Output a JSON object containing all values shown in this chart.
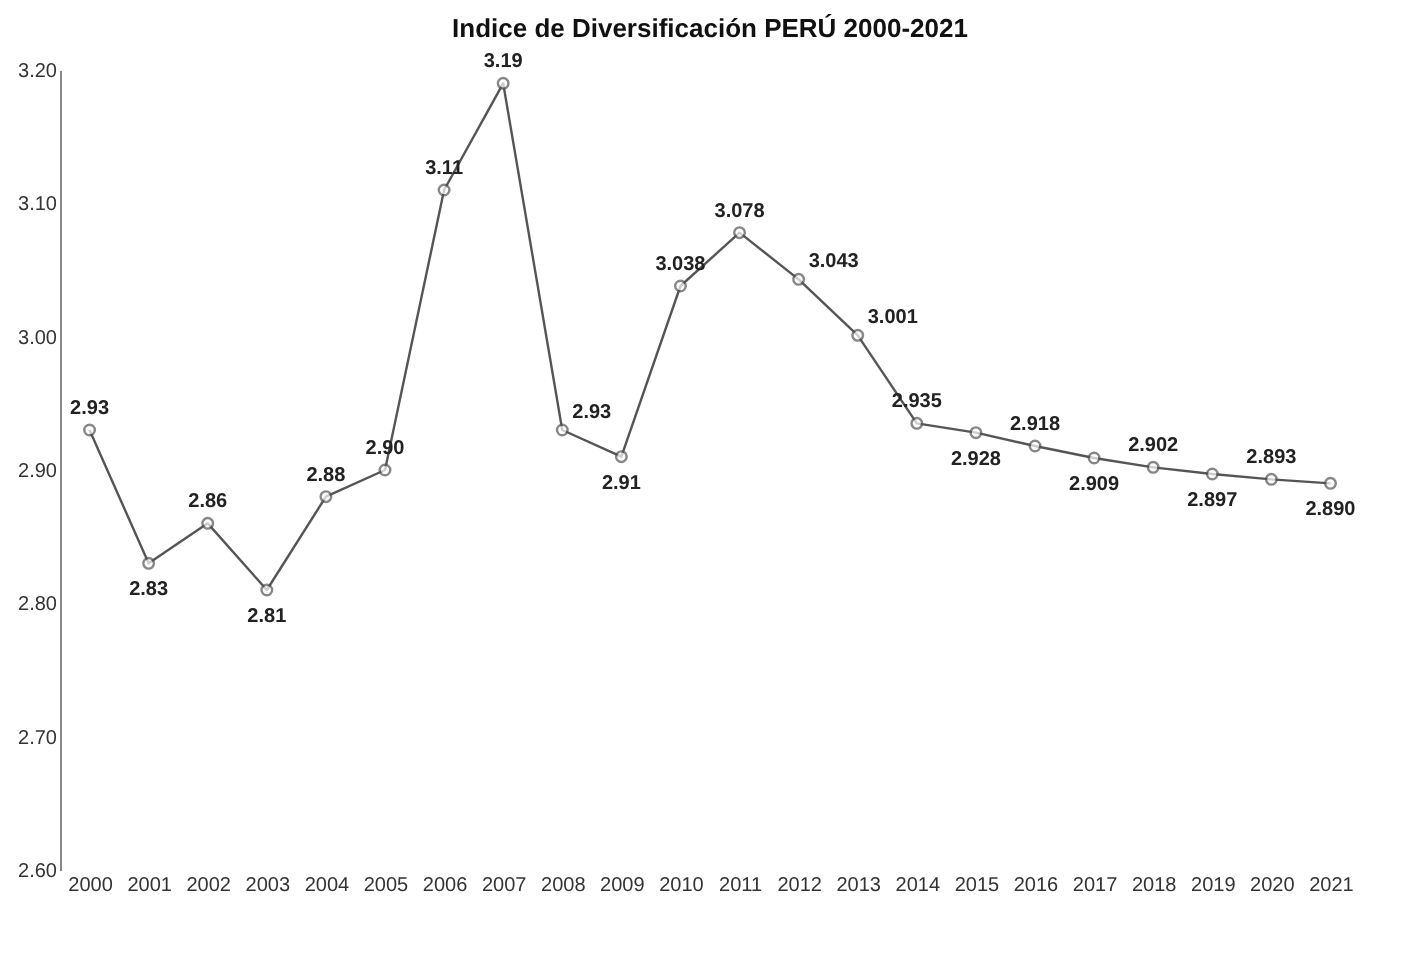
{
  "chart_data": {
    "type": "line",
    "title": "Indice de Diversificación PERÚ 2000-2021",
    "categories": [
      "2000",
      "2001",
      "2002",
      "2003",
      "2004",
      "2005",
      "2006",
      "2007",
      "2008",
      "2009",
      "2010",
      "2011",
      "2012",
      "2013",
      "2014",
      "2015",
      "2016",
      "2017",
      "2018",
      "2019",
      "2020",
      "2021"
    ],
    "series": [
      {
        "color": "#555555",
        "values": [
          2.93,
          2.83,
          2.86,
          2.81,
          2.88,
          2.9,
          3.11,
          3.19,
          2.93,
          2.91,
          3.038,
          3.078,
          3.043,
          3.001,
          2.935,
          2.928,
          2.918,
          2.909,
          2.902,
          2.897,
          2.893,
          2.89
        ],
        "value_labels": [
          "2.93",
          "2.83",
          "2.86",
          "2.81",
          "2.88",
          "2.90",
          "3.11",
          "3.19",
          "2.93",
          "2.91",
          "3.038",
          "3.078",
          "3.043",
          "3.001",
          "2.935",
          "2.928",
          "2.918",
          "2.909",
          "2.902",
          "2.897",
          "2.893",
          "2.890"
        ]
      }
    ],
    "ylim": [
      2.6,
      3.2
    ],
    "yticks": [
      {
        "value": 2.6,
        "label": "2.60"
      },
      {
        "value": 2.7,
        "label": "2.70"
      },
      {
        "value": 2.8,
        "label": "2.80"
      },
      {
        "value": 2.9,
        "label": "2.90"
      },
      {
        "value": 3.0,
        "label": "3.00"
      },
      {
        "value": 3.1,
        "label": "3.10"
      },
      {
        "value": 3.2,
        "label": "3.20"
      }
    ],
    "grid": false,
    "marker": "circle",
    "line_style": "solid",
    "legend": false
  }
}
